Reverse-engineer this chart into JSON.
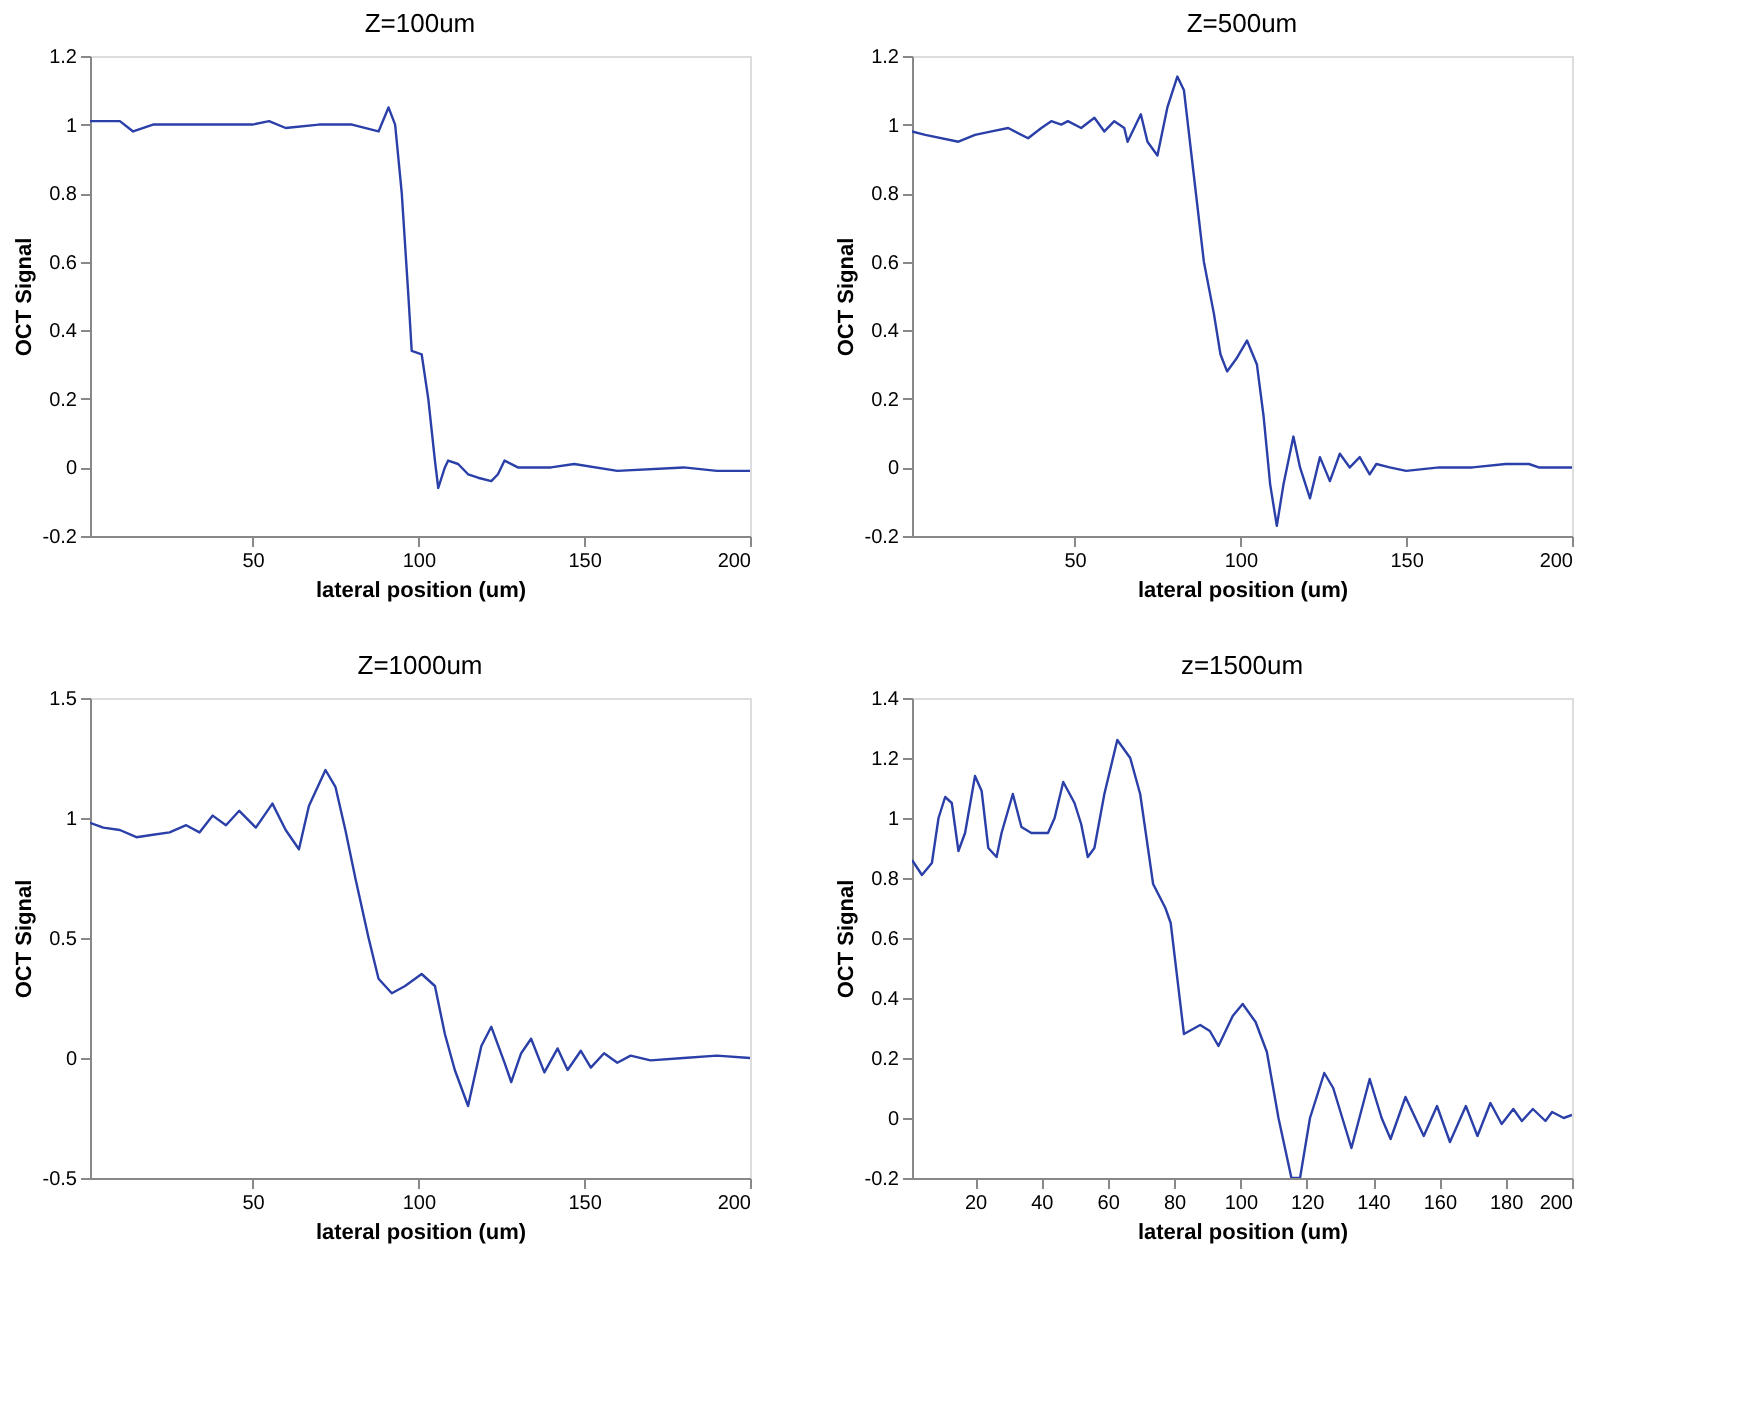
{
  "chart_data": [
    {
      "type": "line",
      "title": "Z=100um",
      "xlabel": "lateral position (um)",
      "ylabel": "OCT Signal",
      "xlim": [
        1,
        200
      ],
      "ylim": [
        -0.2,
        1.2
      ],
      "xticks": [
        50,
        100,
        150,
        200
      ],
      "yticks": [
        -0.2,
        0,
        0.2,
        0.4,
        0.6,
        0.8,
        1,
        1.2
      ],
      "grid": false,
      "line_style": "solid",
      "x": [
        1,
        5,
        10,
        14,
        20,
        30,
        40,
        50,
        55,
        60,
        70,
        80,
        88,
        91,
        93,
        95,
        97,
        98,
        101,
        103,
        105,
        106,
        108,
        109,
        112,
        115,
        118,
        122,
        124,
        126,
        130,
        140,
        147,
        160,
        180,
        190,
        200
      ],
      "series": [
        {
          "color": "#2a3fa8",
          "values": [
            1.01,
            1.01,
            1.01,
            0.98,
            1.0,
            1.0,
            1.0,
            1.0,
            1.01,
            0.99,
            1.0,
            1.0,
            0.98,
            1.05,
            1.0,
            0.8,
            0.5,
            0.34,
            0.33,
            0.2,
            0.02,
            -0.06,
            0.0,
            0.02,
            0.01,
            -0.02,
            -0.03,
            -0.04,
            -0.02,
            0.02,
            0.0,
            0.0,
            0.01,
            -0.01,
            0.0,
            -0.01,
            -0.01
          ]
        }
      ]
    },
    {
      "type": "line",
      "title": "Z=500um",
      "xlabel": "lateral position (um)",
      "ylabel": "OCT Signal",
      "xlim": [
        1,
        200
      ],
      "ylim": [
        -0.2,
        1.2
      ],
      "xticks": [
        50,
        100,
        150,
        200
      ],
      "yticks": [
        -0.2,
        0,
        0.2,
        0.4,
        0.6,
        0.8,
        1,
        1.2
      ],
      "grid": false,
      "line_style": "solid",
      "x": [
        1,
        5,
        15,
        20,
        25,
        30,
        36,
        40,
        43,
        46,
        48,
        52,
        56,
        59,
        62,
        65,
        66,
        70,
        72,
        75,
        78,
        81,
        83,
        86,
        89,
        92,
        94,
        96,
        99,
        102,
        105,
        107,
        109,
        111,
        113,
        116,
        118,
        121,
        124,
        127,
        130,
        133,
        136,
        139,
        141,
        145,
        150,
        160,
        170,
        180,
        187,
        190,
        200
      ],
      "series": [
        {
          "color": "#2a3fa8",
          "values": [
            0.98,
            0.97,
            0.95,
            0.97,
            0.98,
            0.99,
            0.96,
            0.99,
            1.01,
            1.0,
            1.01,
            0.99,
            1.02,
            0.98,
            1.01,
            0.99,
            0.95,
            1.03,
            0.95,
            0.91,
            1.05,
            1.14,
            1.1,
            0.85,
            0.6,
            0.45,
            0.33,
            0.28,
            0.32,
            0.37,
            0.3,
            0.15,
            -0.05,
            -0.17,
            -0.05,
            0.09,
            0.0,
            -0.09,
            0.03,
            -0.04,
            0.04,
            0.0,
            0.03,
            -0.02,
            0.01,
            0.0,
            -0.01,
            0.0,
            0.0,
            0.01,
            0.01,
            0.0,
            0.0
          ]
        }
      ]
    },
    {
      "type": "line",
      "title": "Z=1000um",
      "xlabel": "lateral position (um)",
      "ylabel": "OCT Signal",
      "xlim": [
        1,
        200
      ],
      "ylim": [
        -0.5,
        1.5
      ],
      "xticks": [
        50,
        100,
        150,
        200
      ],
      "yticks": [
        -0.5,
        0,
        0.5,
        1,
        1.5
      ],
      "grid": false,
      "line_style": "solid",
      "x": [
        1,
        5,
        10,
        15,
        20,
        25,
        30,
        34,
        38,
        42,
        46,
        51,
        56,
        60,
        64,
        67,
        72,
        75,
        78,
        81,
        85,
        88,
        92,
        96,
        101,
        105,
        108,
        111,
        115,
        119,
        122,
        126,
        128,
        131,
        134,
        138,
        142,
        145,
        149,
        152,
        156,
        160,
        164,
        170,
        180,
        190,
        200
      ],
      "series": [
        {
          "color": "#2a3fa8",
          "values": [
            0.98,
            0.96,
            0.95,
            0.92,
            0.93,
            0.94,
            0.97,
            0.94,
            1.01,
            0.97,
            1.03,
            0.96,
            1.06,
            0.95,
            0.87,
            1.05,
            1.2,
            1.13,
            0.95,
            0.75,
            0.5,
            0.33,
            0.27,
            0.3,
            0.35,
            0.3,
            0.1,
            -0.05,
            -0.2,
            0.05,
            0.13,
            -0.02,
            -0.1,
            0.02,
            0.08,
            -0.06,
            0.04,
            -0.05,
            0.03,
            -0.04,
            0.02,
            -0.02,
            0.01,
            -0.01,
            0.0,
            0.01,
            0.0
          ]
        }
      ]
    },
    {
      "type": "line",
      "title": "z=1500um",
      "xlabel": "lateral position (um)",
      "ylabel": "OCT Signal",
      "xlim": [
        1,
        200
      ],
      "ylim": [
        -0.2,
        1.4
      ],
      "xticks": [
        20,
        40,
        60,
        80,
        100,
        120,
        140,
        160,
        180,
        200
      ],
      "yticks": [
        -0.2,
        0,
        0.2,
        0.4,
        0.6,
        0.8,
        1,
        1.2,
        1.4
      ],
      "grid": false,
      "line_style": "solid",
      "x": [
        1,
        4,
        7,
        9,
        11,
        13,
        15,
        17,
        20,
        22,
        24,
        26.5,
        28,
        31.4,
        34,
        37,
        42,
        44,
        46.6,
        50,
        52,
        54,
        56,
        59,
        62.9,
        66.8,
        69.8,
        73.7,
        77.4,
        79,
        83,
        87.9,
        90.8,
        93.4,
        97.7,
        100.7,
        104.6,
        108,
        111.5,
        115.4,
        118,
        121,
        125.3,
        128,
        133.5,
        139,
        142.6,
        145.3,
        149.8,
        155.3,
        159.3,
        163.2,
        168,
        171.5,
        175.4,
        178.8,
        182.3,
        184.9,
        188.2,
        192,
        194,
        197.5,
        200
      ],
      "series": [
        {
          "color": "#2a3fa8",
          "values": [
            0.86,
            0.81,
            0.85,
            1.0,
            1.07,
            1.05,
            0.89,
            0.95,
            1.14,
            1.09,
            0.9,
            0.87,
            0.95,
            1.08,
            0.97,
            0.95,
            0.95,
            1.0,
            1.12,
            1.05,
            0.98,
            0.87,
            0.9,
            1.08,
            1.26,
            1.2,
            1.08,
            0.78,
            0.7,
            0.65,
            0.28,
            0.31,
            0.29,
            0.24,
            0.34,
            0.38,
            0.32,
            0.22,
            0.0,
            -0.2,
            -0.2,
            0.0,
            0.15,
            0.1,
            -0.1,
            0.13,
            0.0,
            -0.07,
            0.07,
            -0.06,
            0.04,
            -0.08,
            0.04,
            -0.06,
            0.05,
            -0.02,
            0.03,
            -0.01,
            0.03,
            -0.01,
            0.02,
            0.0,
            0.01
          ]
        }
      ]
    }
  ]
}
